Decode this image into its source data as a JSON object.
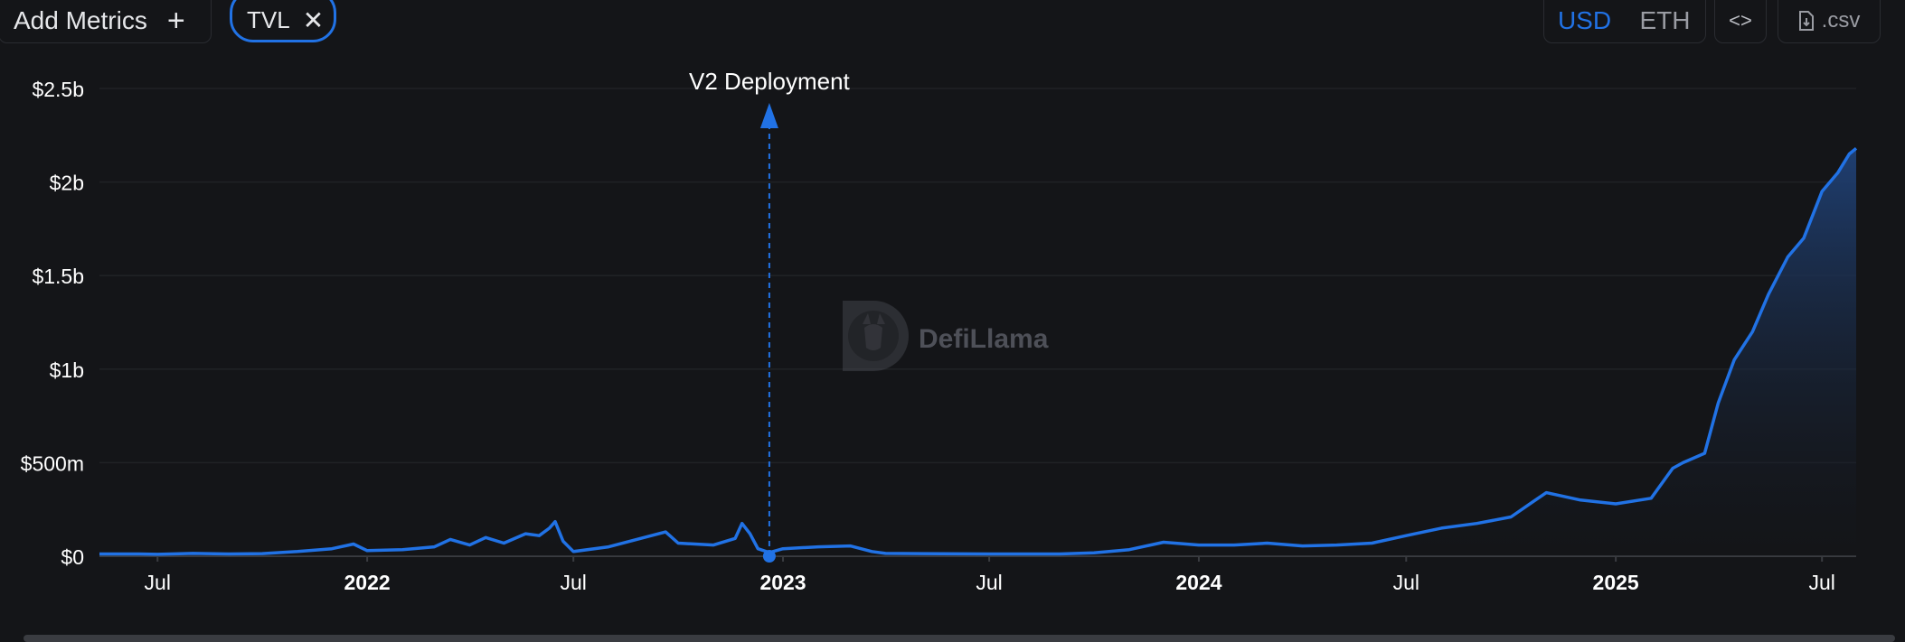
{
  "toolbar": {
    "add_metrics_label": "Add Metrics",
    "metric_pill_label": "TVL",
    "currency_options": [
      "USD",
      "ETH"
    ],
    "currency_selected": "USD",
    "embed_icon": "code-icon",
    "csv_label": ".csv",
    "csv_icon": "file-download-icon"
  },
  "watermark": {
    "text": "DefiLlama",
    "icon": "llama-logo-icon"
  },
  "colors": {
    "accent": "#2172e5",
    "background": "#141518",
    "area_top": "#1f3f72"
  },
  "chart_data": {
    "type": "area",
    "title": "",
    "xlabel": "",
    "ylabel": "",
    "y_ticks": [
      "$0",
      "$500m",
      "$1b",
      "$1.5b",
      "$2b",
      "$2.5b"
    ],
    "y_tick_values": [
      0,
      500,
      1000,
      1500,
      2000,
      2500
    ],
    "ylim": [
      0,
      2500
    ],
    "y_unit": "USD millions",
    "x_ticks": [
      {
        "date": "2021-07-01",
        "label": "Jul",
        "bold": false
      },
      {
        "date": "2022-01-01",
        "label": "2022",
        "bold": true
      },
      {
        "date": "2022-07-01",
        "label": "Jul",
        "bold": false
      },
      {
        "date": "2023-01-01",
        "label": "2023",
        "bold": true
      },
      {
        "date": "2023-07-01",
        "label": "Jul",
        "bold": false
      },
      {
        "date": "2024-01-01",
        "label": "2024",
        "bold": true
      },
      {
        "date": "2024-07-01",
        "label": "Jul",
        "bold": false
      },
      {
        "date": "2025-01-01",
        "label": "2025",
        "bold": true
      },
      {
        "date": "2025-07-01",
        "label": "Jul",
        "bold": false
      }
    ],
    "xlim": [
      "2021-05-11",
      "2025-07-31"
    ],
    "grid": true,
    "annotation": {
      "label": "V2 Deployment",
      "date": "2022-12-20",
      "value": 0
    },
    "series": [
      {
        "name": "TVL",
        "points": [
          [
            "2021-05-11",
            12
          ],
          [
            "2021-06-15",
            12
          ],
          [
            "2021-07-01",
            10
          ],
          [
            "2021-08-01",
            15
          ],
          [
            "2021-09-01",
            12
          ],
          [
            "2021-10-01",
            14
          ],
          [
            "2021-11-01",
            25
          ],
          [
            "2021-12-01",
            40
          ],
          [
            "2021-12-20",
            65
          ],
          [
            "2022-01-01",
            30
          ],
          [
            "2022-02-01",
            35
          ],
          [
            "2022-03-01",
            50
          ],
          [
            "2022-03-15",
            90
          ],
          [
            "2022-04-01",
            60
          ],
          [
            "2022-04-15",
            100
          ],
          [
            "2022-05-01",
            70
          ],
          [
            "2022-05-20",
            120
          ],
          [
            "2022-06-01",
            110
          ],
          [
            "2022-06-10",
            150
          ],
          [
            "2022-06-15",
            185
          ],
          [
            "2022-06-22",
            80
          ],
          [
            "2022-07-01",
            25
          ],
          [
            "2022-08-01",
            50
          ],
          [
            "2022-09-01",
            100
          ],
          [
            "2022-09-20",
            130
          ],
          [
            "2022-10-01",
            70
          ],
          [
            "2022-11-01",
            60
          ],
          [
            "2022-11-20",
            95
          ],
          [
            "2022-11-26",
            175
          ],
          [
            "2022-12-03",
            120
          ],
          [
            "2022-12-10",
            40
          ],
          [
            "2022-12-20",
            20
          ],
          [
            "2023-01-01",
            40
          ],
          [
            "2023-02-01",
            50
          ],
          [
            "2023-03-01",
            55
          ],
          [
            "2023-03-20",
            25
          ],
          [
            "2023-04-01",
            15
          ],
          [
            "2023-07-01",
            12
          ],
          [
            "2023-09-01",
            12
          ],
          [
            "2023-10-01",
            18
          ],
          [
            "2023-11-01",
            35
          ],
          [
            "2023-12-01",
            75
          ],
          [
            "2024-01-01",
            60
          ],
          [
            "2024-02-01",
            60
          ],
          [
            "2024-03-01",
            70
          ],
          [
            "2024-04-01",
            55
          ],
          [
            "2024-05-01",
            60
          ],
          [
            "2024-06-01",
            70
          ],
          [
            "2024-07-01",
            110
          ],
          [
            "2024-08-01",
            150
          ],
          [
            "2024-09-01",
            175
          ],
          [
            "2024-10-01",
            210
          ],
          [
            "2024-10-20",
            290
          ],
          [
            "2024-11-01",
            340
          ],
          [
            "2024-12-01",
            300
          ],
          [
            "2025-01-01",
            280
          ],
          [
            "2025-02-01",
            310
          ],
          [
            "2025-02-20",
            470
          ],
          [
            "2025-03-01",
            500
          ],
          [
            "2025-03-20",
            550
          ],
          [
            "2025-04-01",
            820
          ],
          [
            "2025-04-15",
            1050
          ],
          [
            "2025-05-01",
            1200
          ],
          [
            "2025-05-15",
            1400
          ],
          [
            "2025-06-01",
            1600
          ],
          [
            "2025-06-15",
            1700
          ],
          [
            "2025-07-01",
            1950
          ],
          [
            "2025-07-15",
            2050
          ],
          [
            "2025-07-25",
            2150
          ],
          [
            "2025-07-31",
            2180
          ]
        ]
      }
    ]
  }
}
